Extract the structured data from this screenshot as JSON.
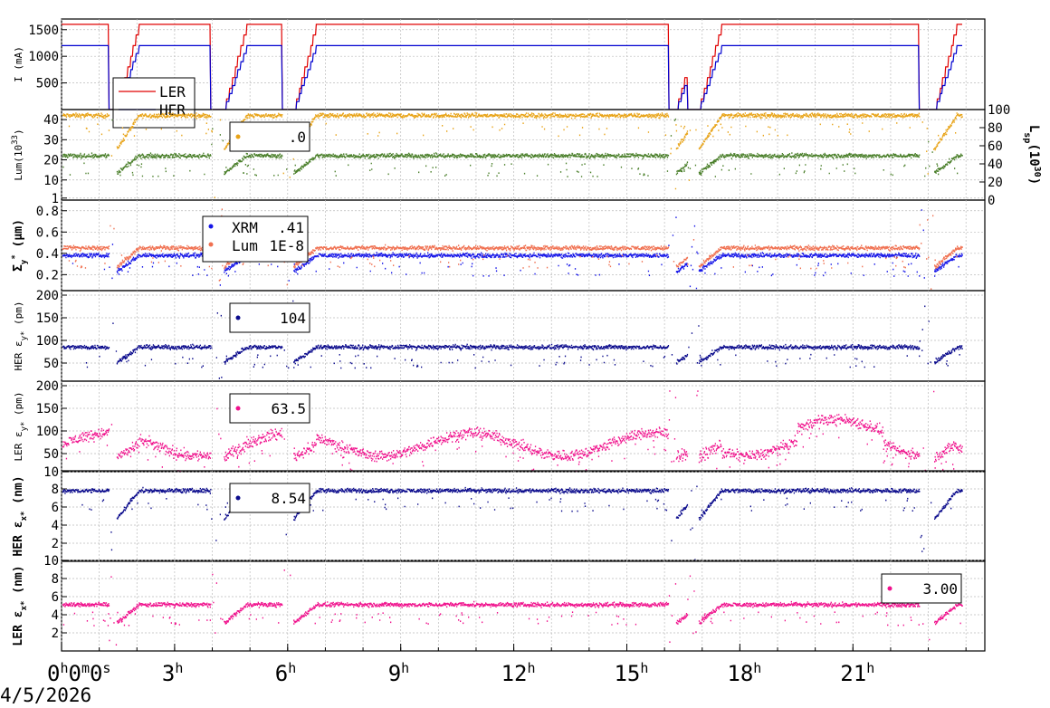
{
  "date_label": "4/5/2026",
  "time_axis": {
    "range_h": [
      0,
      24.5
    ],
    "ticks": [
      {
        "h": 0,
        "label": "0",
        "superscript": "h",
        "trail": "0",
        "trail_sup": "m",
        "trail2": "0",
        "trail2_sup": "s"
      },
      {
        "h": 3,
        "label": "3",
        "superscript": "h"
      },
      {
        "h": 6,
        "label": "6",
        "superscript": "h"
      },
      {
        "h": 9,
        "label": "9",
        "superscript": "h"
      },
      {
        "h": 12,
        "label": "12",
        "superscript": "h"
      },
      {
        "h": 15,
        "label": "15",
        "superscript": "h"
      },
      {
        "h": 18,
        "label": "18",
        "superscript": "h"
      },
      {
        "h": 21,
        "label": "21",
        "superscript": "h"
      }
    ]
  },
  "colors": {
    "LER": "#e00000",
    "HER": "#0000d0",
    "lum_orange": "#e8a317",
    "lum_green": "#4a7f2a",
    "xrm_blue": "#1515e8",
    "lum_salmon": "#f07050",
    "navy": "#0a0a8c",
    "pink": "#f0108c"
  },
  "chart_data": [
    {
      "type": "line",
      "ylabel": "I (mA)",
      "ylim": [
        0,
        1700
      ],
      "yticks": [
        500,
        1000,
        1500
      ],
      "legend": {
        "placement": "top-left",
        "entries": [
          "LER",
          "HER"
        ]
      },
      "series": [
        {
          "name": "LER",
          "color": "LER",
          "level": 1600
        },
        {
          "name": "HER",
          "color": "HER",
          "level": 1200
        }
      ]
    },
    {
      "type": "scatter",
      "ylabel": "Lum(10",
      "ylabel_sup": "33",
      "ylabel_tail": ")",
      "ylim": [
        0,
        45
      ],
      "yticks": [
        1,
        10,
        20,
        30,
        40
      ],
      "right_axis": {
        "label": "L",
        "label_sub": "sp",
        "label_mid": "(10",
        "label_sup": "30",
        "label_tail": ")",
        "ylim": [
          0,
          100
        ],
        "yticks": [
          0,
          20,
          40,
          60,
          80,
          100
        ]
      },
      "legend": {
        "placement": "top-center",
        "value": ".0"
      },
      "series": [
        {
          "color": "lum_orange",
          "level": 42
        },
        {
          "color": "lum_green",
          "level": 22
        }
      ]
    },
    {
      "type": "scatter",
      "ylabel": "Σ",
      "ylabel_sub": "y",
      "ylabel_sup": "*",
      "ylabel_tail": " (μm)",
      "ylim": [
        0.05,
        0.9
      ],
      "yticks": [
        0.2,
        0.4,
        0.6,
        0.8
      ],
      "tick_labels": [
        "0.2",
        "0.4",
        "0.6",
        "0.8"
      ],
      "legend": {
        "placement": "top-left",
        "entries": [
          {
            "name": "XRM",
            "value": ".41"
          },
          {
            "name": "Lum",
            "value": "1E-8"
          }
        ]
      },
      "series": [
        {
          "name": "XRM",
          "color": "xrm_blue",
          "level": 0.38
        },
        {
          "name": "Lum",
          "color": "lum_salmon",
          "level": 0.45
        }
      ]
    },
    {
      "type": "scatter",
      "ylabel": "HER ε",
      "ylabel_sub": "y*",
      "ylabel_tail": " (pm)",
      "ylim": [
        10,
        210
      ],
      "yticks": [
        50,
        100,
        150,
        200
      ],
      "legend": {
        "placement": "top-center",
        "value": "104"
      },
      "series": [
        {
          "color": "navy",
          "level": 85
        }
      ]
    },
    {
      "type": "scatter",
      "ylabel": "LER ε",
      "ylabel_sub": "y*",
      "ylabel_tail": " (pm)",
      "ylim": [
        10,
        210
      ],
      "yticks": [
        10,
        50,
        100,
        150,
        200
      ],
      "legend": {
        "placement": "top-center",
        "value": "63.5"
      },
      "series": [
        {
          "color": "pink",
          "level": 70
        }
      ]
    },
    {
      "type": "scatter",
      "ylabel": "HER ε",
      "ylabel_sub": "x*",
      "ylabel_tail": " (nm)",
      "ylim": [
        0,
        10
      ],
      "yticks": [
        2,
        4,
        6,
        8
      ],
      "legend": {
        "placement": "top-center",
        "value": "8.54"
      },
      "series": [
        {
          "color": "navy",
          "level": 7.8
        }
      ]
    },
    {
      "type": "scatter",
      "ylabel": "LER ε",
      "ylabel_sub": "x*",
      "ylabel_tail": " (nm)",
      "ylim": [
        0,
        10
      ],
      "yticks": [
        2,
        4,
        6,
        8,
        10
      ],
      "legend": {
        "placement": "top-right",
        "value": "3.00"
      },
      "series": [
        {
          "color": "pink",
          "level": 5.1
        }
      ]
    }
  ]
}
